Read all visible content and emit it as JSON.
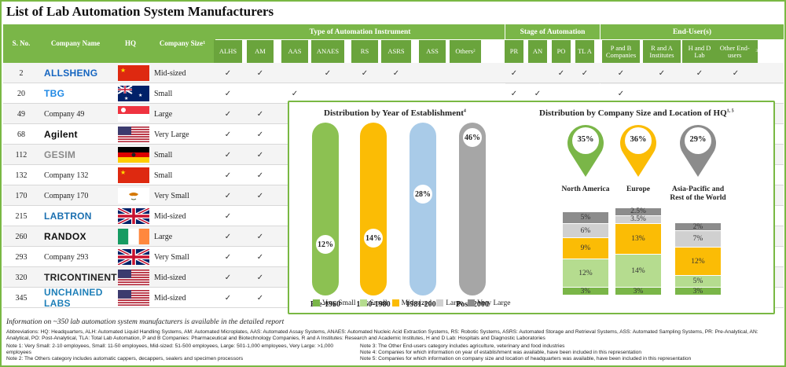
{
  "title": "List of Lab Automation System Manufacturers",
  "headers": {
    "sno": "S. No.",
    "company": "Company Name",
    "hq": "HQ",
    "size": "Company Size",
    "size_sup": "1",
    "type_group": "Type of Automation Instrument",
    "stage_group": "Stage of Automation",
    "enduser_group": "End-User(s)",
    "type_cols": [
      "ALHS",
      "AM",
      "AAS",
      "ANAES",
      "RS",
      "ASRS",
      "ASS",
      "Others"
    ],
    "others_sup": "2",
    "stage_cols": [
      "PR",
      "AN",
      "PO",
      "TL A"
    ],
    "enduser_cols": [
      "P and B Companies",
      "R and A Institutes",
      "H and D Lab",
      "Other End-users"
    ],
    "other_end_sup": "3"
  },
  "rows": [
    {
      "sno": "2",
      "name": "ALLSHENG",
      "logo": true,
      "logo_color": "#1565c0",
      "flag": "cn",
      "size": "Mid-sized",
      "checks": [
        1,
        1,
        0,
        1,
        1,
        1,
        0,
        0,
        1,
        0,
        1,
        1,
        1,
        1,
        1,
        1
      ]
    },
    {
      "sno": "20",
      "name": "TBG",
      "logo": true,
      "logo_color": "#1e88e5",
      "flag": "au",
      "size": "Small",
      "checks": [
        1,
        0,
        1,
        0,
        0,
        0,
        0,
        0,
        1,
        1,
        0,
        0,
        1,
        0,
        0,
        0
      ]
    },
    {
      "sno": "49",
      "name": "Company 49",
      "logo": false,
      "flag": "sg",
      "size": "Large",
      "checks": [
        1,
        1
      ]
    },
    {
      "sno": "68",
      "name": "Agilent",
      "logo": true,
      "logo_color": "#0a0a0a",
      "flag": "us",
      "size": "Very Large",
      "checks": [
        1,
        1
      ]
    },
    {
      "sno": "112",
      "name": "GESIM",
      "logo": true,
      "logo_color": "#8a8a8a",
      "flag": "de",
      "size": "Small",
      "checks": [
        1,
        1
      ]
    },
    {
      "sno": "132",
      "name": "Company 132",
      "logo": false,
      "flag": "cn",
      "size": "Small",
      "checks": [
        1,
        1
      ]
    },
    {
      "sno": "170",
      "name": "Company 170",
      "logo": false,
      "flag": "cy",
      "size": "Very Small",
      "checks": [
        1,
        1
      ]
    },
    {
      "sno": "215",
      "name": "LABTRON",
      "logo": true,
      "logo_color": "#1a6fb0",
      "flag": "gb",
      "size": "Mid-sized",
      "checks": [
        1,
        0
      ]
    },
    {
      "sno": "260",
      "name": "RANDOX",
      "logo": true,
      "logo_color": "#111",
      "flag": "ie",
      "size": "Large",
      "checks": [
        1,
        1
      ]
    },
    {
      "sno": "293",
      "name": "Company 293",
      "logo": false,
      "flag": "gb",
      "size": "Very Small",
      "checks": [
        1,
        1
      ]
    },
    {
      "sno": "320",
      "name": "TRICONTINENT",
      "logo": true,
      "logo_color": "#222",
      "flag": "us",
      "size": "Mid-sized",
      "checks": [
        1,
        1
      ]
    },
    {
      "sno": "345",
      "name": "UNCHAINED LABS",
      "logo": true,
      "logo_color": "#1e7fb8",
      "flag": "us",
      "size": "Mid-sized",
      "checks": [
        1,
        1
      ]
    }
  ],
  "check_mark": "✓",
  "year_chart": {
    "title": "Distribution by Year of Establishment",
    "title_sup": "4",
    "bars": [
      {
        "label": "Pre-1960",
        "value": "12%",
        "fraction": 0.12,
        "color": "#8cc152"
      },
      {
        "label": "1960-1980",
        "value": "14%",
        "fraction": 0.14,
        "color": "#fbbc05"
      },
      {
        "label": "1981-2000",
        "value": "28%",
        "fraction": 0.28,
        "color": "#a9cbe8"
      },
      {
        "label": "Post-2000",
        "value": "46%",
        "fraction": 0.46,
        "color": "#a6a6a6"
      }
    ]
  },
  "size_chart": {
    "title": "Distribution by Company Size and Location of HQ",
    "title_sup": "1, 5",
    "regions": [
      {
        "label": "North America",
        "share": "35%",
        "color": "#7ab648",
        "segments": [
          {
            "cat": "Very Small",
            "value": "3%",
            "pct": 3
          },
          {
            "cat": "Small",
            "value": "12%",
            "pct": 12
          },
          {
            "cat": "Mid-sized",
            "value": "9%",
            "pct": 9
          },
          {
            "cat": "Large",
            "value": "6%",
            "pct": 6
          },
          {
            "cat": "Very Large",
            "value": "5%",
            "pct": 5
          }
        ]
      },
      {
        "label": "Europe",
        "share": "36%",
        "color": "#fbbc05",
        "segments": [
          {
            "cat": "Very Small",
            "value": "3%",
            "pct": 3
          },
          {
            "cat": "Small",
            "value": "14%",
            "pct": 14
          },
          {
            "cat": "Mid-sized",
            "value": "13%",
            "pct": 13
          },
          {
            "cat": "Large",
            "value": "3.5%",
            "pct": 3.5
          },
          {
            "cat": "Very Large",
            "value": "2.5%",
            "pct": 2.5
          }
        ]
      },
      {
        "label": "Asia-Pacific and Rest of the World",
        "share": "29%",
        "color": "#8c8c8c",
        "segments": [
          {
            "cat": "Very Small",
            "value": "3%",
            "pct": 3
          },
          {
            "cat": "Small",
            "value": "5%",
            "pct": 5
          },
          {
            "cat": "Mid-sized",
            "value": "12%",
            "pct": 12
          },
          {
            "cat": "Large",
            "value": "7%",
            "pct": 7
          },
          {
            "cat": "Very Large",
            "value": "2%",
            "pct": 2
          }
        ]
      }
    ],
    "legend": [
      {
        "label": "Very Small",
        "color": "#7ab648"
      },
      {
        "label": "Small",
        "color": "#b5dc8f"
      },
      {
        "label": "Mid-sized",
        "color": "#fbbc05"
      },
      {
        "label": "Large",
        "color": "#d0d0d0"
      },
      {
        "label": "Very Large",
        "color": "#8c8c8c"
      }
    ]
  },
  "info": "Information on ~350 lab automation system manufacturers is available in the detailed report",
  "abbreviations": "Abbreviations: HQ: Headquarters, ALH: Automated Liquid Handling Systems, AM: Automated Microplates, AAS: Automated Assay Systems, ANAES: Automated Nucleic Acid Extraction Systems, RS: Robotic Systems, ASRS: Automated Storage and Retrieval Systems, ASS: Automated Sampling Systems, PR: Pre-Analytical, AN: Analytical, PO: Post-Analytical, TLA: Total Lab Automation, P and B Companies: Pharmaceutical and Biotechnology Companies, R and A Institutes: Research and Academic Institutes, H and D Lab: Hospitals and Diagnostic Laboratories",
  "notes_left": [
    "Note 1: Very Small: 2-10 employees, Small: 11-50 employees, Mid-sized: 51-500 employees, Large: 501-1,000 employees, Very Large: >1,000 employees",
    "Note 2: The Others category includes automatic cappers, decappers, sealers and specimen processors"
  ],
  "notes_right": [
    "Note 3: The Other End-users category includes agriculture, veterinary and food industries",
    "Note 4: Companies for which information on year of establishment was available, have been included in this representation",
    "Note 5: Companies for which information on company size and location of headquarters was available, have been included in this representation"
  ]
}
